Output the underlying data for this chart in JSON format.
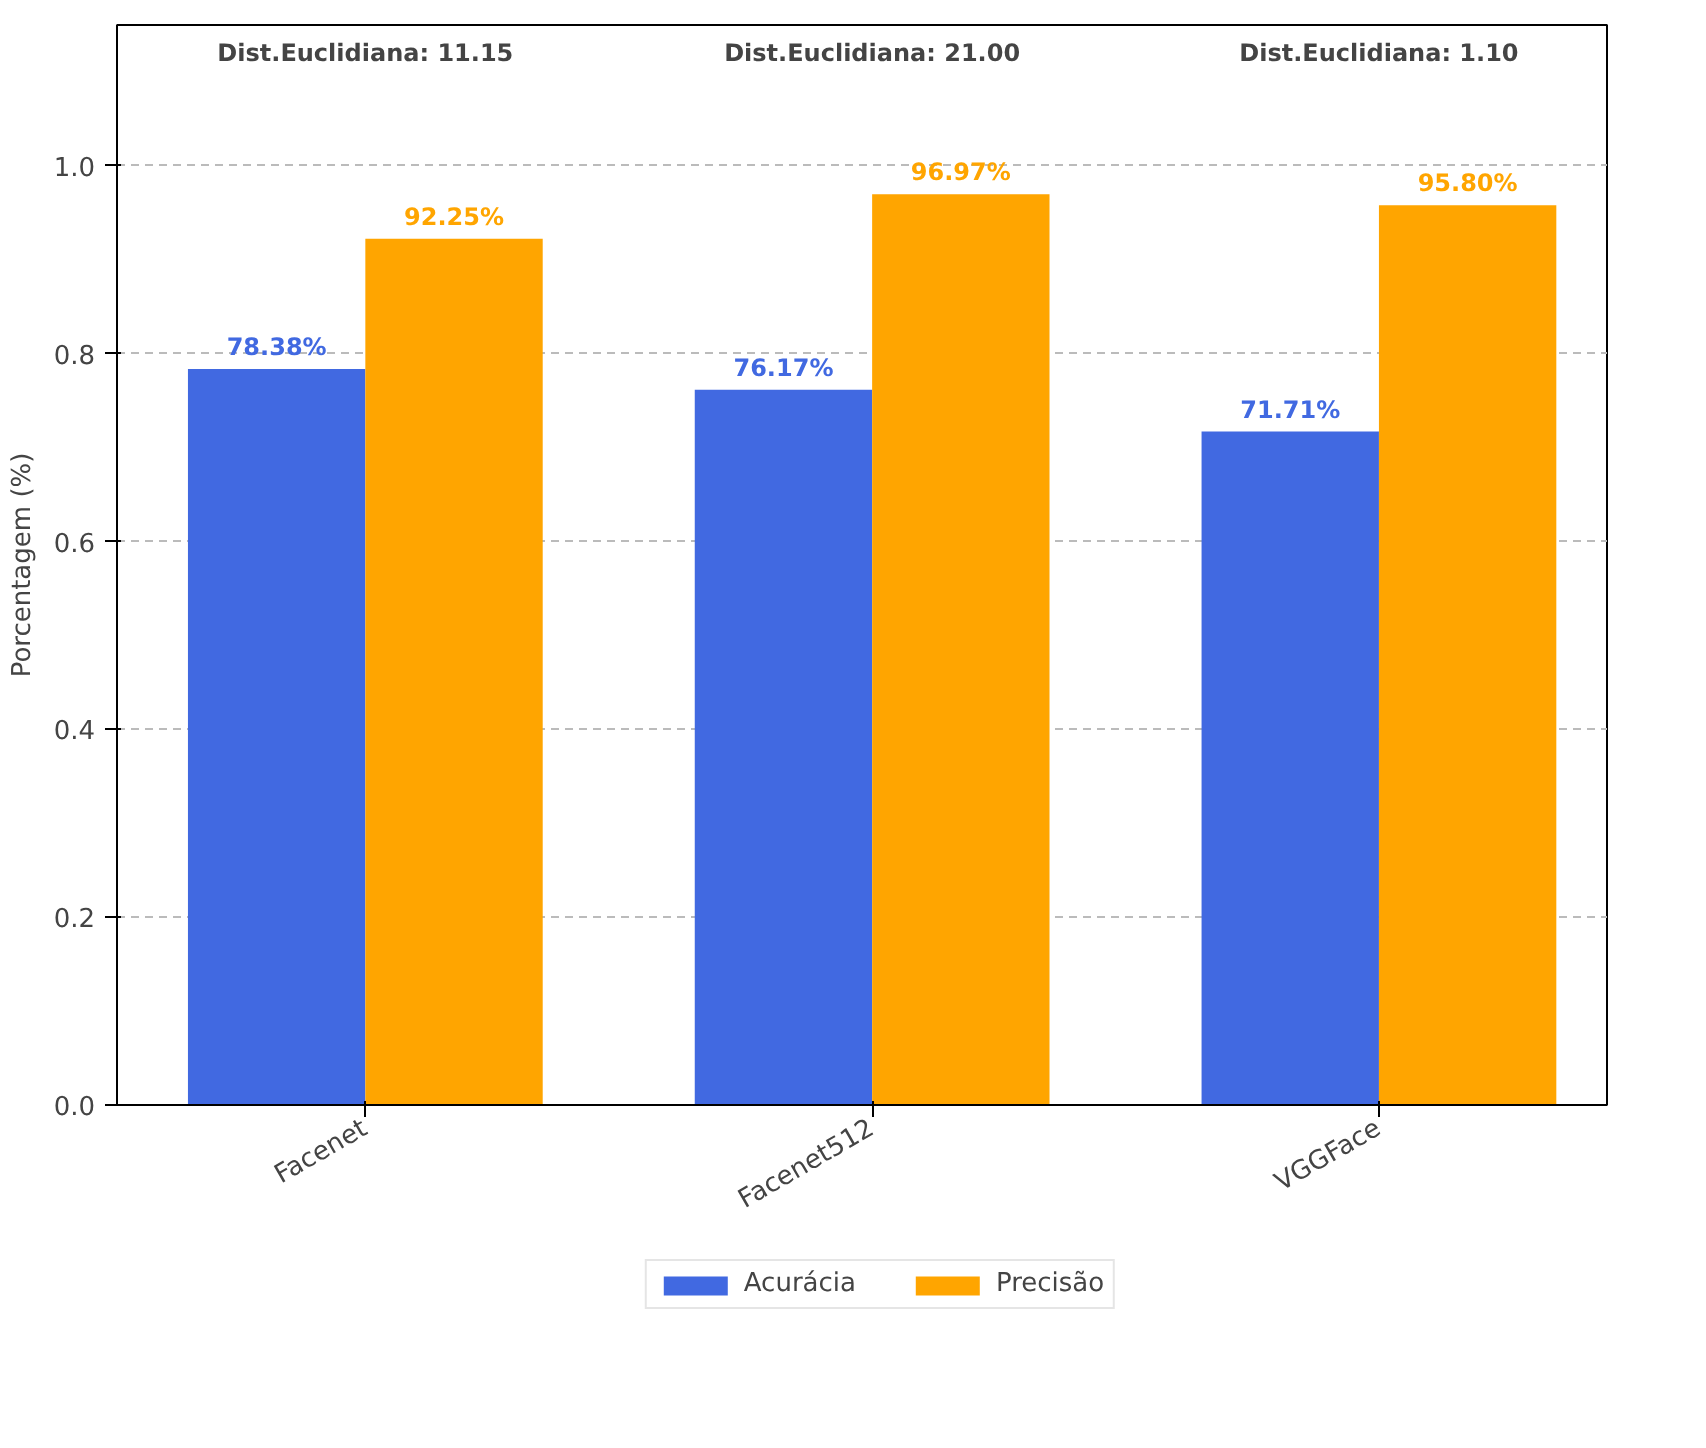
{
  "chart_data": {
    "type": "bar",
    "ylabel": "Porcentagem (%)",
    "categories": [
      "Facenet",
      "Facenet512",
      "VGGFace"
    ],
    "series": [
      {
        "name": "Acurácia",
        "color": "#4169e1",
        "values": [
          0.7838,
          0.7617,
          0.7171
        ],
        "value_labels": [
          "78.38%",
          "76.17%",
          "71.71%"
        ]
      },
      {
        "name": "Precisão",
        "color": "#ffa500",
        "values": [
          0.9225,
          0.9697,
          0.958
        ],
        "value_labels": [
          "92.25%",
          "96.97%",
          "95.80%"
        ]
      }
    ],
    "ylim": [
      0,
      1.15
    ],
    "yticks": [
      {
        "value": 0,
        "label": "0.0"
      },
      0.2,
      0.4,
      0.6,
      0.8,
      {
        "value": 1,
        "label": "1.0"
      }
    ],
    "grid": "y",
    "legend": "bottom",
    "annotations": [
      "Dist.Euclidiana: 11.15",
      "Dist.Euclidiana: 21.00",
      "Dist.Euclidiana: 1.10"
    ]
  }
}
